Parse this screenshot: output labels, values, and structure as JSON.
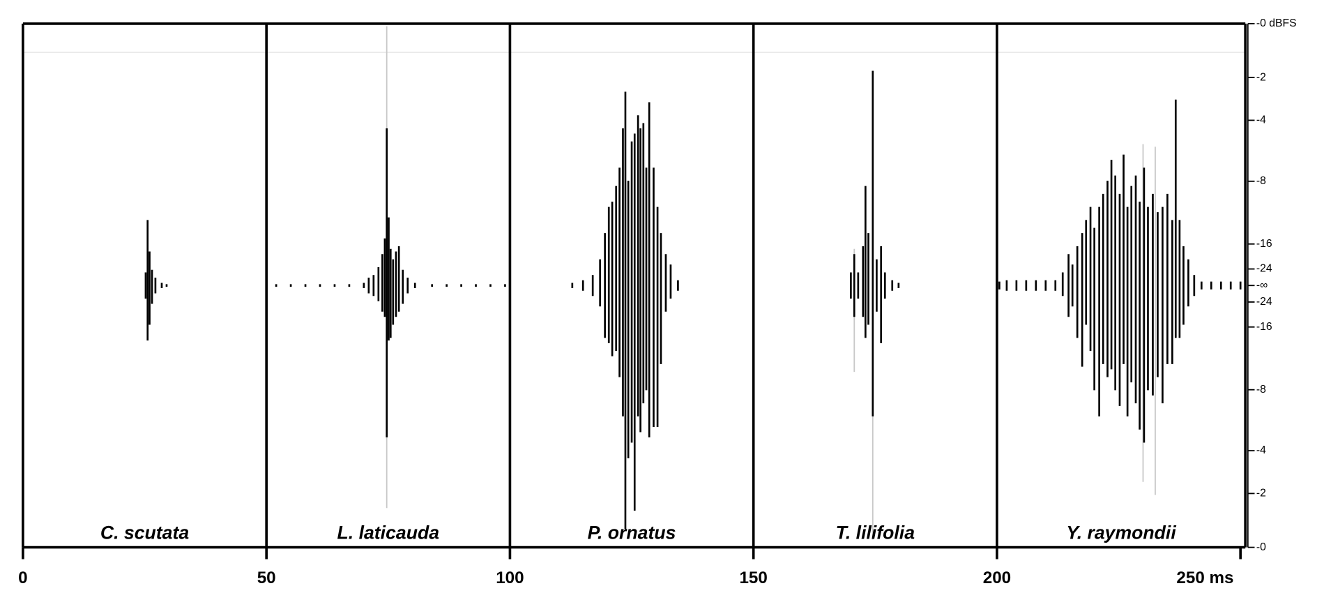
{
  "chart_data": {
    "type": "waveform",
    "xlim": [
      0,
      251
    ],
    "xticks": [
      0,
      50,
      100,
      150,
      200,
      {
        "value": 250,
        "label": "250 ms"
      }
    ],
    "ylim": [
      -1,
      1
    ],
    "yticks_upper": [
      {
        "value": 0,
        "label": "-0 dBFS"
      },
      -2,
      -4,
      -8,
      -16,
      -24
    ],
    "ytick_center": "-∞",
    "yticks_lower": [
      -24,
      -16,
      -8,
      -4,
      -2,
      {
        "value": 0,
        "label": "-0"
      }
    ],
    "overlay_color": "#c8c8c8",
    "series": [
      {
        "name": "C. scutata",
        "color": "#000000",
        "x": [
          25.2,
          25.6,
          26.0,
          26.5,
          27.2,
          28.5,
          29.5
        ],
        "upper": [
          0.05,
          0.25,
          0.13,
          0.06,
          0.03,
          0.01,
          0.005
        ],
        "lower": [
          -0.05,
          -0.21,
          -0.15,
          -0.07,
          -0.03,
          -0.01,
          -0.005
        ]
      },
      {
        "name": "L. laticauda",
        "color": "#000000",
        "x": [
          52,
          55,
          58,
          61,
          64,
          67,
          70.0,
          71.0,
          72.0,
          73.0,
          73.8,
          74.3,
          74.7,
          75.1,
          75.5,
          76.0,
          76.6,
          77.2,
          78.0,
          79.0,
          80.5,
          84,
          87,
          90,
          93,
          96,
          99
        ],
        "upper": [
          0.005,
          0.005,
          0.005,
          0.005,
          0.005,
          0.005,
          0.01,
          0.03,
          0.04,
          0.07,
          0.12,
          0.18,
          0.6,
          0.26,
          0.14,
          0.1,
          0.13,
          0.15,
          0.06,
          0.03,
          0.01,
          0.005,
          0.005,
          0.005,
          0.005,
          0.005,
          0.005
        ],
        "lower": [
          -0.005,
          -0.005,
          -0.005,
          -0.005,
          -0.005,
          -0.005,
          -0.01,
          -0.03,
          -0.04,
          -0.06,
          -0.1,
          -0.12,
          -0.58,
          -0.21,
          -0.2,
          -0.15,
          -0.12,
          -0.1,
          -0.07,
          -0.03,
          -0.01,
          -0.005,
          -0.005,
          -0.005,
          -0.005,
          -0.005,
          -0.005
        ],
        "overlay": {
          "x": [
            74.7
          ],
          "upper": [
            0.99
          ],
          "lower": [
            -0.85
          ]
        }
      },
      {
        "name": "P. ornatus",
        "color": "#000000",
        "x": [
          112.8,
          115,
          117,
          118.5,
          119.5,
          120.3,
          121,
          121.8,
          122.5,
          123.2,
          123.7,
          124.3,
          125,
          125.6,
          126.3,
          126.8,
          127.4,
          128.0,
          128.6,
          129.5,
          130.3,
          131.0,
          132,
          133,
          134.5
        ],
        "upper": [
          0.01,
          0.02,
          0.04,
          0.1,
          0.2,
          0.3,
          0.32,
          0.38,
          0.45,
          0.6,
          0.74,
          0.4,
          0.55,
          0.58,
          0.65,
          0.6,
          0.62,
          0.45,
          0.7,
          0.45,
          0.3,
          0.2,
          0.12,
          0.08,
          0.02
        ],
        "lower": [
          -0.01,
          -0.02,
          -0.04,
          -0.08,
          -0.2,
          -0.22,
          -0.27,
          -0.25,
          -0.35,
          -0.5,
          -0.93,
          -0.66,
          -0.6,
          -0.86,
          -0.5,
          -0.56,
          -0.45,
          -0.4,
          -0.58,
          -0.54,
          -0.54,
          -0.3,
          -0.1,
          -0.05,
          -0.02
        ]
      },
      {
        "name": "T. lilifolia",
        "color": "#000000",
        "x": [
          170.0,
          170.7,
          171.5,
          172.5,
          173.0,
          173.6,
          174.5,
          175.3,
          176.2,
          177.0,
          178.5,
          179.8
        ],
        "upper": [
          0.05,
          0.12,
          0.05,
          0.15,
          0.38,
          0.2,
          0.82,
          0.1,
          0.15,
          0.05,
          0.02,
          0.01
        ],
        "lower": [
          -0.05,
          -0.12,
          -0.05,
          -0.12,
          -0.2,
          -0.15,
          -0.5,
          -0.1,
          -0.22,
          -0.05,
          -0.02,
          -0.01
        ],
        "overlay": {
          "x": [
            170.7,
            174.5
          ],
          "upper": [
            0.14,
            0.82
          ],
          "lower": [
            -0.33,
            -0.97
          ]
        }
      },
      {
        "name": "Y. raymondii",
        "color": "#000000",
        "x": [
          200.5,
          202,
          204,
          206,
          208,
          210,
          212,
          213.5,
          214.7,
          215.5,
          216.5,
          217.5,
          218.3,
          219.2,
          220,
          221,
          221.8,
          222.7,
          223.5,
          224.3,
          225.2,
          226,
          226.8,
          227.6,
          228.5,
          229.3,
          230.2,
          231,
          232,
          233,
          234,
          235,
          236,
          236.7,
          237.5,
          238.3,
          239.3,
          240.5,
          242,
          244,
          246,
          248,
          250
        ],
        "upper": [
          0.015,
          0.02,
          0.02,
          0.02,
          0.02,
          0.02,
          0.02,
          0.05,
          0.12,
          0.08,
          0.15,
          0.2,
          0.25,
          0.3,
          0.22,
          0.3,
          0.35,
          0.4,
          0.48,
          0.42,
          0.35,
          0.5,
          0.3,
          0.38,
          0.42,
          0.32,
          0.45,
          0.3,
          0.35,
          0.28,
          0.3,
          0.35,
          0.25,
          0.71,
          0.25,
          0.15,
          0.1,
          0.04,
          0.015,
          0.015,
          0.015,
          0.015,
          0.015
        ],
        "lower": [
          -0.015,
          -0.02,
          -0.02,
          -0.02,
          -0.02,
          -0.02,
          -0.02,
          -0.04,
          -0.12,
          -0.08,
          -0.2,
          -0.31,
          -0.15,
          -0.25,
          -0.4,
          -0.5,
          -0.3,
          -0.35,
          -0.32,
          -0.4,
          -0.46,
          -0.3,
          -0.5,
          -0.37,
          -0.45,
          -0.55,
          -0.6,
          -0.4,
          -0.42,
          -0.35,
          -0.45,
          -0.3,
          -0.3,
          -0.2,
          -0.2,
          -0.15,
          -0.08,
          -0.04,
          -0.015,
          -0.015,
          -0.015,
          -0.015,
          -0.015
        ],
        "overlay": {
          "x": [
            230.0,
            232.5
          ],
          "upper": [
            0.54,
            0.53
          ],
          "lower": [
            -0.75,
            -0.8
          ]
        }
      }
    ]
  }
}
